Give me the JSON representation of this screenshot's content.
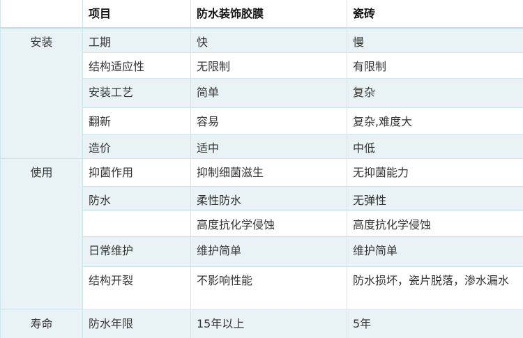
{
  "colors": {
    "row_band": "#e9f3f6",
    "grid_border": "#cfe7eb",
    "header_border": "#bfdde7",
    "body_text": "#333333",
    "header_text": "#111111"
  },
  "table": {
    "columns": [
      "",
      "项目",
      "防水装饰胶膜",
      "瓷砖"
    ],
    "groups": [
      {
        "label": "安装",
        "rows": [
          {
            "item": "工期",
            "film": "快",
            "tile": "慢"
          },
          {
            "item": "结构适应性",
            "film": "无限制",
            "tile": "有限制"
          },
          {
            "item": "安装工艺",
            "film": "简单",
            "tile": "复杂"
          },
          {
            "item": "翻新",
            "film": "容易",
            "tile": "复杂,难度大"
          },
          {
            "item": "造价",
            "film": "适中",
            "tile": "中低"
          }
        ]
      },
      {
        "label": "使用",
        "rows": [
          {
            "item": "抑菌作用",
            "film": "抑制细菌滋生",
            "tile": "无抑菌能力"
          },
          {
            "item": "防水",
            "film": "柔性防水",
            "tile": "无弹性"
          },
          {
            "item": "",
            "film": "高度抗化学侵蚀",
            "tile": "高度抗化学侵蚀"
          },
          {
            "item": "日常维护",
            "film": "维护简单",
            "tile": "维护简单"
          },
          {
            "item": "结构开裂",
            "film": "不影响性能",
            "tile": "防水损坏，瓷片脱落，渗水漏水"
          }
        ]
      },
      {
        "label": "寿命",
        "rows": [
          {
            "item": "防水年限",
            "film": "15年以上",
            "tile": "5年"
          }
        ]
      }
    ]
  }
}
